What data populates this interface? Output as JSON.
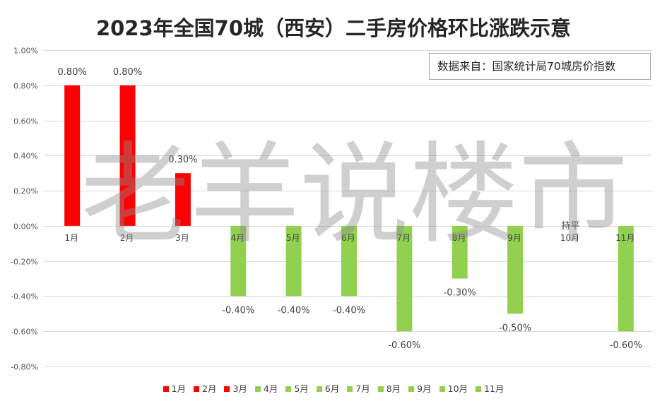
{
  "chart_data": {
    "type": "bar",
    "title": "2023年全国70城（西安）二手房价格环比涨跌示意",
    "categories": [
      "1月",
      "2月",
      "3月",
      "4月",
      "5月",
      "6月",
      "7月",
      "8月",
      "9月",
      "10月",
      "11月"
    ],
    "values": [
      0.8,
      0.8,
      0.3,
      -0.4,
      -0.4,
      -0.4,
      -0.6,
      -0.3,
      -0.5,
      0,
      -0.6
    ],
    "data_labels": [
      "0.80%",
      "0.80%",
      "0.30%",
      "-0.40%",
      "-0.40%",
      "-0.40%",
      "-0.60%",
      "-0.30%",
      "-0.50%",
      "持平",
      "-0.60%"
    ],
    "point_colors": [
      "#ff0000",
      "#ff0000",
      "#ff0000",
      "#92d050",
      "#92d050",
      "#92d050",
      "#92d050",
      "#92d050",
      "#92d050",
      "#92d050",
      "#92d050"
    ],
    "ylim": [
      -0.8,
      1.0
    ],
    "y_axis": {
      "ticks": [
        {
          "value": 1.0,
          "label": "1.00%"
        },
        {
          "value": 0.8,
          "label": "0.80%"
        },
        {
          "value": 0.6,
          "label": "0.60%"
        },
        {
          "value": 0.4,
          "label": "0.40%"
        },
        {
          "value": 0.2,
          "label": "0.20%"
        },
        {
          "value": 0.0,
          "label": "0.00%"
        },
        {
          "value": -0.2,
          "label": "-0.20%"
        },
        {
          "value": -0.4,
          "label": "-0.40%"
        },
        {
          "value": -0.6,
          "label": "-0.60%"
        },
        {
          "value": -0.8,
          "label": "-0.80%"
        }
      ]
    },
    "grid": true,
    "legend": {
      "position": "bottom",
      "entries": [
        "1月",
        "2月",
        "3月",
        "4月",
        "5月",
        "6月",
        "7月",
        "8月",
        "9月",
        "10月",
        "11月"
      ]
    }
  },
  "annotation": {
    "text": "数据来自：国家统计局70城房价指数"
  },
  "watermark": {
    "text": "老羊说楼市"
  }
}
